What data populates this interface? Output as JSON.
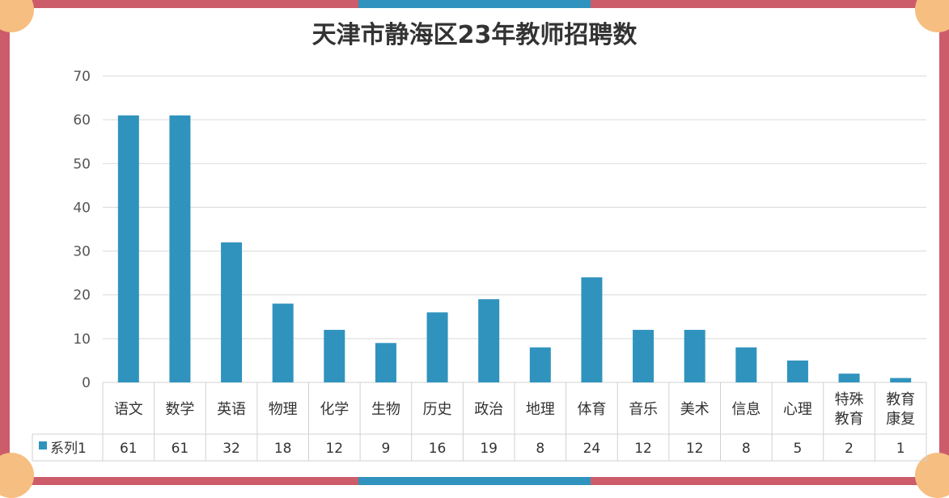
{
  "title": "天津市静海区23年教师招聘数",
  "colors": {
    "bar": "#2f93be",
    "frame": "#cd5c6b",
    "frame_accent": "#2f93be",
    "corner": "#f6be80"
  },
  "chart_data": {
    "type": "bar",
    "title": "天津市静海区23年教师招聘数",
    "categories": [
      "语文",
      "数学",
      "英语",
      "物理",
      "化学",
      "生物",
      "历史",
      "政治",
      "地理",
      "体育",
      "音乐",
      "美术",
      "信息",
      "心理",
      "特殊\n教育",
      "教育\n康复"
    ],
    "series": [
      {
        "name": "系列1",
        "values": [
          61,
          61,
          32,
          18,
          12,
          9,
          16,
          19,
          8,
          24,
          12,
          12,
          8,
          5,
          2,
          1
        ]
      }
    ],
    "ylim": [
      0,
      70
    ],
    "yticks": [
      0,
      10,
      20,
      30,
      40,
      50,
      60,
      70
    ],
    "grid": true,
    "legend": "data-table",
    "xlabel": "",
    "ylabel": ""
  }
}
